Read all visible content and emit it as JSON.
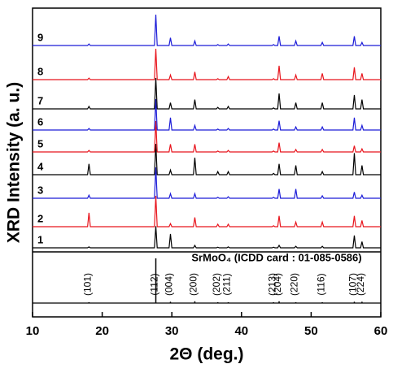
{
  "chart_data": {
    "type": "line",
    "x_label": "2Θ (deg.)",
    "y_label": "XRD Intensity (a. u.)",
    "xlim": [
      10,
      60
    ],
    "xticks": [
      10,
      20,
      30,
      40,
      50,
      60
    ],
    "ylim": [
      0,
      100
    ],
    "x": [
      10,
      17.9,
      18.1,
      18.3,
      27.5,
      27.7,
      27.9,
      29.6,
      29.8,
      30.0,
      33.1,
      33.3,
      33.5,
      36.4,
      36.6,
      36.8,
      37.9,
      38.1,
      38.3,
      44.4,
      44.6,
      44.8,
      45.2,
      45.4,
      45.6,
      47.6,
      47.8,
      48.0,
      51.4,
      51.6,
      51.8,
      56.0,
      56.2,
      56.4,
      57.1,
      57.3,
      57.5,
      60
    ],
    "series": [
      {
        "name": "1",
        "color": "#000000",
        "values": [
          0,
          0,
          3,
          0,
          0,
          70,
          0,
          0,
          45,
          0,
          0,
          8,
          0,
          0,
          2,
          0,
          0,
          3,
          0,
          0,
          2,
          0,
          0,
          8,
          0,
          0,
          5,
          0,
          0,
          5,
          0,
          0,
          40,
          0,
          0,
          20,
          0,
          0
        ]
      },
      {
        "name": "2",
        "color": "#e8141c",
        "values": [
          0,
          0,
          45,
          0,
          0,
          100,
          0,
          0,
          10,
          0,
          0,
          30,
          0,
          0,
          8,
          0,
          0,
          8,
          0,
          0,
          3,
          0,
          0,
          35,
          0,
          0,
          15,
          0,
          0,
          15,
          0,
          0,
          35,
          0,
          0,
          20,
          0,
          0
        ]
      },
      {
        "name": "3",
        "color": "#1c1cd8",
        "values": [
          0,
          0,
          10,
          0,
          0,
          100,
          0,
          0,
          15,
          0,
          0,
          15,
          0,
          0,
          3,
          0,
          0,
          5,
          0,
          0,
          3,
          0,
          0,
          30,
          0,
          0,
          30,
          0,
          0,
          8,
          0,
          0,
          20,
          0,
          0,
          10,
          0,
          0
        ]
      },
      {
        "name": "4",
        "color": "#000000",
        "values": [
          0,
          0,
          35,
          0,
          0,
          100,
          0,
          0,
          15,
          0,
          0,
          55,
          0,
          0,
          10,
          0,
          0,
          10,
          0,
          0,
          4,
          0,
          0,
          35,
          0,
          0,
          30,
          0,
          0,
          10,
          0,
          0,
          70,
          0,
          0,
          30,
          0,
          0
        ]
      },
      {
        "name": "5",
        "color": "#e8141c",
        "values": [
          0,
          0,
          5,
          0,
          0,
          100,
          0,
          0,
          25,
          0,
          0,
          25,
          0,
          0,
          3,
          0,
          0,
          5,
          0,
          0,
          3,
          0,
          0,
          30,
          0,
          0,
          8,
          0,
          0,
          8,
          0,
          0,
          20,
          0,
          0,
          10,
          0,
          0
        ]
      },
      {
        "name": "6",
        "color": "#1c1cd8",
        "values": [
          0,
          0,
          5,
          0,
          0,
          100,
          0,
          0,
          40,
          0,
          0,
          15,
          0,
          0,
          3,
          0,
          0,
          5,
          0,
          0,
          3,
          0,
          0,
          30,
          0,
          0,
          10,
          0,
          0,
          10,
          0,
          0,
          40,
          0,
          0,
          15,
          0,
          0
        ]
      },
      {
        "name": "7",
        "color": "#000000",
        "values": [
          0,
          0,
          8,
          0,
          0,
          100,
          0,
          0,
          20,
          0,
          0,
          30,
          0,
          0,
          5,
          0,
          0,
          8,
          0,
          0,
          3,
          0,
          0,
          50,
          0,
          0,
          20,
          0,
          0,
          20,
          0,
          0,
          45,
          0,
          0,
          30,
          0,
          0
        ]
      },
      {
        "name": "8",
        "color": "#e8141c",
        "values": [
          0,
          0,
          5,
          0,
          0,
          100,
          0,
          0,
          15,
          0,
          0,
          25,
          0,
          0,
          3,
          0,
          0,
          10,
          0,
          0,
          3,
          0,
          0,
          45,
          0,
          0,
          15,
          0,
          0,
          20,
          0,
          0,
          40,
          0,
          0,
          20,
          0,
          0
        ]
      },
      {
        "name": "9",
        "color": "#1c1cd8",
        "values": [
          0,
          0,
          5,
          0,
          0,
          100,
          0,
          0,
          25,
          0,
          0,
          15,
          0,
          0,
          3,
          0,
          0,
          5,
          0,
          0,
          3,
          0,
          0,
          30,
          0,
          0,
          15,
          0,
          0,
          10,
          0,
          0,
          30,
          0,
          0,
          10,
          0,
          0
        ]
      }
    ],
    "reference": {
      "title": "SrMoO₄ (ICDD card : 01-085-0586)",
      "x": [
        18.1,
        27.7,
        29.8,
        33.3,
        36.6,
        38.1,
        44.6,
        45.4,
        47.8,
        51.6,
        56.2,
        57.3
      ],
      "values": [
        2,
        100,
        3,
        4,
        2,
        2,
        2,
        4,
        2,
        2,
        3,
        3
      ],
      "labels": [
        "(101)",
        "(112)",
        "(004)",
        "(200)",
        "(202)",
        "(211)",
        "(213)",
        "(204)",
        "(220)",
        "(116)",
        "(107)",
        "(224)"
      ],
      "color": "#000000"
    }
  }
}
